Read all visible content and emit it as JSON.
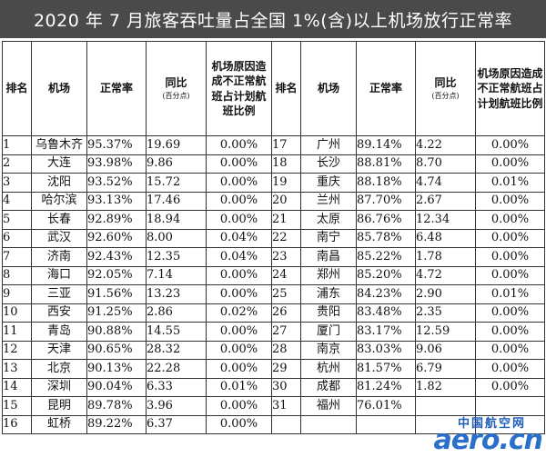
{
  "title": "2020 年 7 月旅客吞吐量占全国 1%(含)以上机场放行正常率",
  "headers": {
    "rank": "排名",
    "airport": "机场",
    "rate": "正常率",
    "yoy": "同比",
    "yoy_unit": "(百分点)",
    "ratio": "机场原因造成不正常航班占计划航班比例"
  },
  "rows": [
    {
      "left": {
        "rank": "1",
        "airport": "乌鲁木齐",
        "rate": "95.37%",
        "yoy": "19.69",
        "ratio": "0.00%"
      },
      "right": {
        "rank": "17",
        "airport": "广州",
        "rate": "89.14%",
        "yoy": "4.22",
        "ratio": "0.00%"
      }
    },
    {
      "left": {
        "rank": "2",
        "airport": "大连",
        "rate": "93.98%",
        "yoy": "9.86",
        "ratio": "0.00%"
      },
      "right": {
        "rank": "18",
        "airport": "长沙",
        "rate": "88.81%",
        "yoy": "8.70",
        "ratio": "0.00%"
      }
    },
    {
      "left": {
        "rank": "3",
        "airport": "沈阳",
        "rate": "93.52%",
        "yoy": "15.72",
        "ratio": "0.00%"
      },
      "right": {
        "rank": "19",
        "airport": "重庆",
        "rate": "88.18%",
        "yoy": "4.74",
        "ratio": "0.01%"
      }
    },
    {
      "left": {
        "rank": "4",
        "airport": "哈尔滨",
        "rate": "93.13%",
        "yoy": "17.46",
        "ratio": "0.00%"
      },
      "right": {
        "rank": "20",
        "airport": "兰州",
        "rate": "87.70%",
        "yoy": "2.67",
        "ratio": "0.00%"
      }
    },
    {
      "left": {
        "rank": "5",
        "airport": "长春",
        "rate": "92.89%",
        "yoy": "18.94",
        "ratio": "0.00%"
      },
      "right": {
        "rank": "21",
        "airport": "太原",
        "rate": "86.76%",
        "yoy": "12.34",
        "ratio": "0.00%"
      }
    },
    {
      "left": {
        "rank": "6",
        "airport": "武汉",
        "rate": "92.60%",
        "yoy": "8.00",
        "ratio": "0.04%"
      },
      "right": {
        "rank": "22",
        "airport": "南宁",
        "rate": "85.78%",
        "yoy": "6.48",
        "ratio": "0.00%"
      }
    },
    {
      "left": {
        "rank": "7",
        "airport": "济南",
        "rate": "92.43%",
        "yoy": "12.35",
        "ratio": "0.04%"
      },
      "right": {
        "rank": "23",
        "airport": "南昌",
        "rate": "85.22%",
        "yoy": "1.78",
        "ratio": "0.00%"
      }
    },
    {
      "left": {
        "rank": "8",
        "airport": "海口",
        "rate": "92.05%",
        "yoy": "7.14",
        "ratio": "0.00%"
      },
      "right": {
        "rank": "24",
        "airport": "郑州",
        "rate": "85.20%",
        "yoy": "4.72",
        "ratio": "0.00%"
      }
    },
    {
      "left": {
        "rank": "9",
        "airport": "三亚",
        "rate": "91.56%",
        "yoy": "13.23",
        "ratio": "0.00%"
      },
      "right": {
        "rank": "25",
        "airport": "浦东",
        "rate": "84.23%",
        "yoy": "2.90",
        "ratio": "0.01%"
      }
    },
    {
      "left": {
        "rank": "10",
        "airport": "西安",
        "rate": "91.25%",
        "yoy": "2.86",
        "ratio": "0.02%"
      },
      "right": {
        "rank": "26",
        "airport": "贵阳",
        "rate": "83.48%",
        "yoy": "2.35",
        "ratio": "0.00%"
      }
    },
    {
      "left": {
        "rank": "11",
        "airport": "青岛",
        "rate": "90.88%",
        "yoy": "14.55",
        "ratio": "0.00%"
      },
      "right": {
        "rank": "27",
        "airport": "厦门",
        "rate": "83.17%",
        "yoy": "12.59",
        "ratio": "0.00%"
      }
    },
    {
      "left": {
        "rank": "12",
        "airport": "天津",
        "rate": "90.65%",
        "yoy": "28.32",
        "ratio": "0.00%"
      },
      "right": {
        "rank": "28",
        "airport": "南京",
        "rate": "83.03%",
        "yoy": "9.06",
        "ratio": "0.00%"
      }
    },
    {
      "left": {
        "rank": "13",
        "airport": "北京",
        "rate": "90.13%",
        "yoy": "22.28",
        "ratio": "0.00%"
      },
      "right": {
        "rank": "29",
        "airport": "杭州",
        "rate": "81.57%",
        "yoy": "6.79",
        "ratio": "0.00%"
      }
    },
    {
      "left": {
        "rank": "14",
        "airport": "深圳",
        "rate": "90.04%",
        "yoy": "6.33",
        "ratio": "0.01%"
      },
      "right": {
        "rank": "30",
        "airport": "成都",
        "rate": "81.24%",
        "yoy": "1.82",
        "ratio": "0.00%"
      }
    },
    {
      "left": {
        "rank": "15",
        "airport": "昆明",
        "rate": "89.78%",
        "yoy": "3.96",
        "ratio": "0.00%"
      },
      "right": {
        "rank": "31",
        "airport": "福州",
        "rate": "76.01%",
        "yoy": "",
        "ratio": ""
      }
    },
    {
      "left": {
        "rank": "16",
        "airport": "虹桥",
        "rate": "89.22%",
        "yoy": "6.37",
        "ratio": "0.00%"
      },
      "right": {
        "rank": "",
        "airport": "",
        "rate": "",
        "yoy": "",
        "ratio": ""
      }
    }
  ],
  "watermark": {
    "top": "中国航空网",
    "main": "aero.cn"
  }
}
